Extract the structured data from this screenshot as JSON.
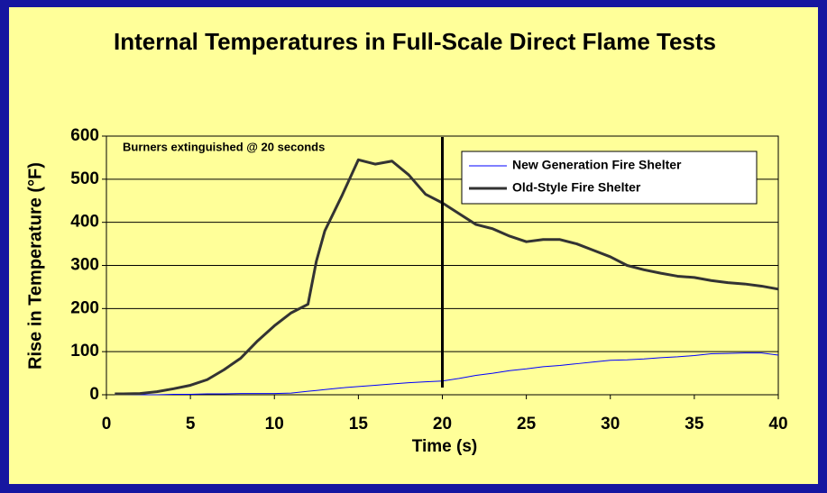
{
  "chart_data": {
    "type": "line",
    "title": "Internal Temperatures in Full-Scale Direct Flame Tests",
    "xlabel": "Time (s)",
    "ylabel": "Rise in Temperature (°F)",
    "annotation": {
      "text": "Burners extinguished @ 20 seconds",
      "x": 20
    },
    "x": [
      0.5,
      1,
      2,
      3,
      4,
      5,
      6,
      7,
      8,
      9,
      10,
      11,
      12,
      12.5,
      13,
      14,
      15,
      16,
      17,
      18,
      19,
      20,
      21,
      22,
      23,
      24,
      25,
      26,
      27,
      28,
      29,
      30,
      31,
      32,
      33,
      34,
      35,
      36,
      37,
      38,
      39,
      40
    ],
    "series": [
      {
        "name": "New Generation Fire Shelter",
        "color": "#0000ff",
        "values": [
          0,
          0,
          0,
          0,
          1,
          1,
          2,
          2,
          3,
          3,
          3,
          4,
          8,
          10,
          12,
          16,
          19,
          22,
          25,
          28,
          30,
          32,
          38,
          45,
          50,
          56,
          60,
          65,
          68,
          72,
          76,
          80,
          81,
          83,
          86,
          88,
          91,
          95,
          96,
          97,
          97,
          92
        ]
      },
      {
        "name": "Old-Style Fire Shelter",
        "color": "#333333",
        "values": [
          2,
          2,
          3,
          7,
          14,
          22,
          35,
          58,
          85,
          125,
          160,
          190,
          210,
          310,
          380,
          460,
          545,
          535,
          542,
          510,
          465,
          445,
          420,
          395,
          385,
          368,
          355,
          360,
          360,
          350,
          335,
          320,
          300,
          290,
          282,
          275,
          272,
          265,
          260,
          257,
          252,
          245
        ]
      }
    ],
    "xlim": [
      0,
      40
    ],
    "xticks": [
      0,
      5,
      10,
      15,
      20,
      25,
      30,
      35,
      40
    ],
    "ylim": [
      0,
      600
    ],
    "yticks": [
      0,
      100,
      200,
      300,
      400,
      500,
      600
    ],
    "grid": true,
    "legend": "upper right"
  }
}
